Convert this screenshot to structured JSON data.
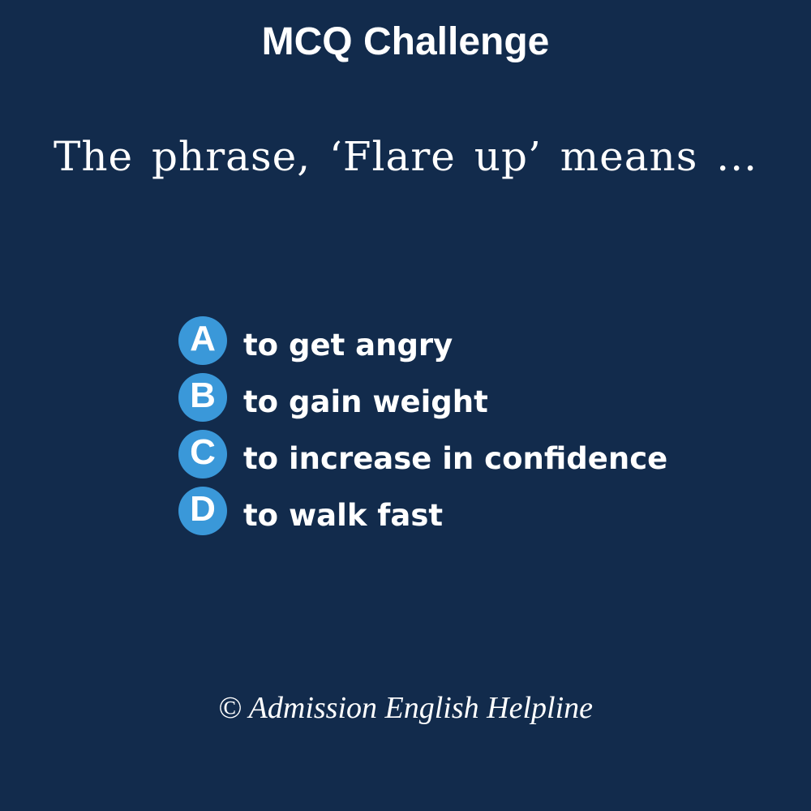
{
  "title": "MCQ Challenge",
  "question": "The phrase, ‘Flare up’ means ...",
  "options": [
    {
      "letter": "A",
      "text": "to get angry"
    },
    {
      "letter": "B",
      "text": "to gain weight"
    },
    {
      "letter": "C",
      "text": "to increase in confidence"
    },
    {
      "letter": "D",
      "text": "to walk fast"
    }
  ],
  "footer": "© Admission English Helpline",
  "colors": {
    "background": "#122b4c",
    "badge": "#3a98d9",
    "text": "#ffffff"
  }
}
